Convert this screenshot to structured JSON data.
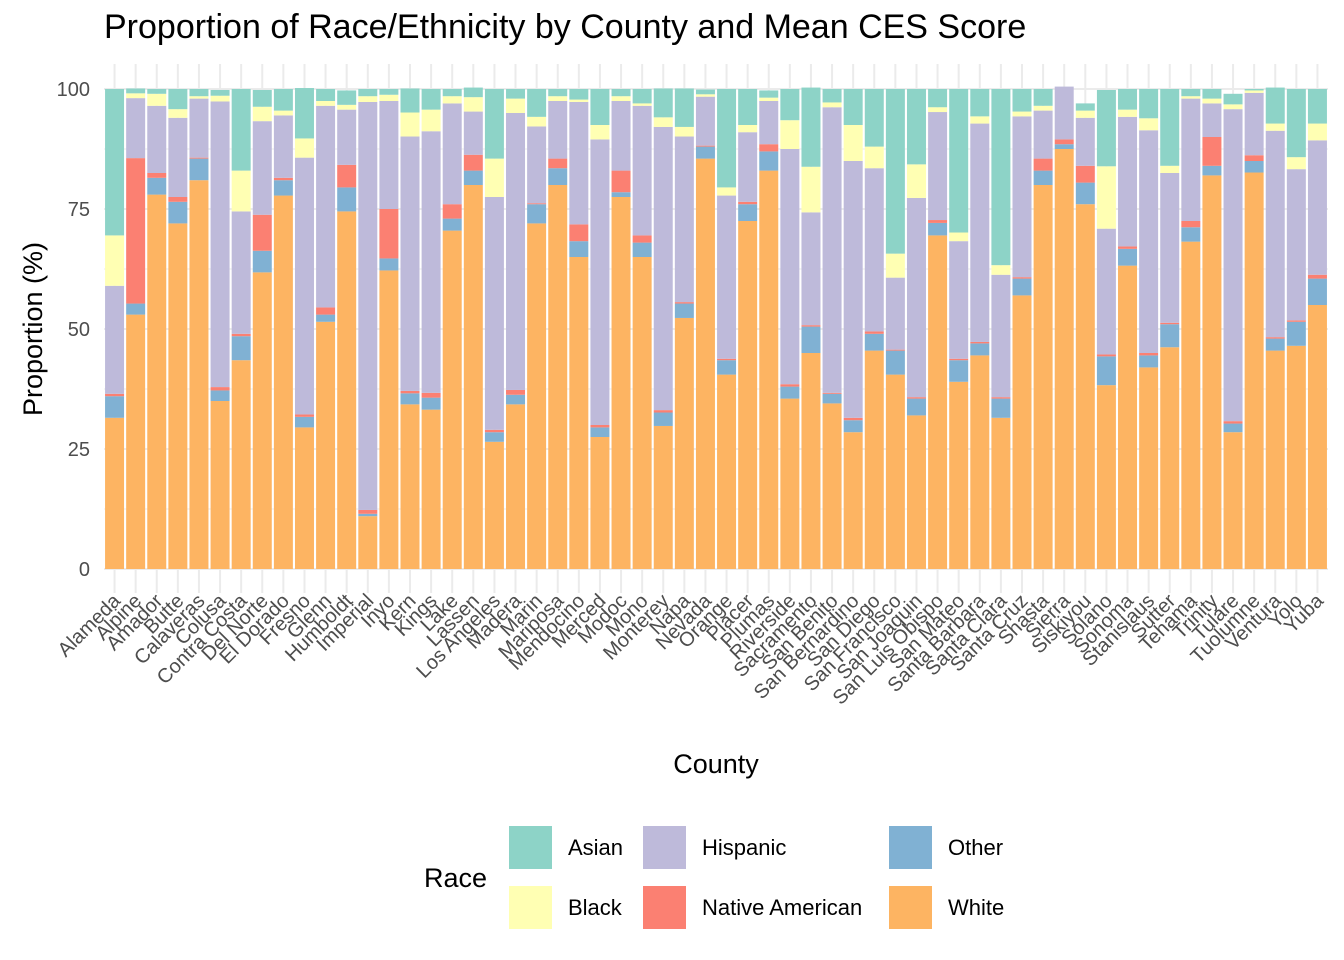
{
  "chart_data": {
    "type": "bar",
    "stacked": true,
    "title": "Proportion of Race/Ethnicity by County and Mean CES Score",
    "xlabel": "County",
    "ylabel": "Proportion (%)",
    "ylim": [
      0,
      100
    ],
    "yticks": [
      "0",
      "25",
      "50",
      "75",
      "100"
    ],
    "grid": true,
    "legend_position": "bottom",
    "legend_title": "Race",
    "colors": {
      "White": "#fdb462",
      "Other": "#80b1d3",
      "Native American": "#fb8072",
      "Hispanic": "#bebada",
      "Black": "#ffffb3",
      "Asian": "#8dd3c7"
    },
    "legend": [
      "Asian",
      "Black",
      "Hispanic",
      "Native American",
      "Other",
      "White"
    ],
    "categories": [
      "Alameda",
      "Alpine",
      "Amador",
      "Butte",
      "Calaveras",
      "Colusa",
      "Contra Costa",
      "Del Norte",
      "El Dorado",
      "Fresno",
      "Glenn",
      "Humboldt",
      "Imperial",
      "Inyo",
      "Kern",
      "Kings",
      "Lake",
      "Lassen",
      "Los Angeles",
      "Madera",
      "Marin",
      "Mariposa",
      "Mendocino",
      "Merced",
      "Modoc",
      "Mono",
      "Monterey",
      "Napa",
      "Nevada",
      "Orange",
      "Placer",
      "Plumas",
      "Riverside",
      "Sacramento",
      "San Benito",
      "San Bernardino",
      "San Diego",
      "San Francisco",
      "San Joaquin",
      "San Luis Obispo",
      "San Mateo",
      "Santa Barbara",
      "Santa Clara",
      "Santa Cruz",
      "Shasta",
      "Sierra",
      "Siskiyou",
      "Solano",
      "Sonoma",
      "Stanislaus",
      "Sutter",
      "Tehama",
      "Trinity",
      "Tulare",
      "Tuolumne",
      "Ventura",
      "Yolo",
      "Yuba"
    ],
    "series": [
      {
        "name": "White",
        "values": [
          31.5,
          53,
          78,
          72,
          81,
          35,
          43.5,
          61.8,
          77.8,
          29.5,
          51.5,
          74.5,
          11,
          62.2,
          34.3,
          33.2,
          70.5,
          80,
          26.5,
          34.3,
          72,
          80,
          65,
          27.5,
          77.5,
          65,
          29.8,
          52.3,
          85.5,
          40.5,
          72.5,
          83,
          35.5,
          45,
          34.5,
          28.5,
          45.5,
          40.5,
          32,
          69.5,
          39,
          44.5,
          31.5,
          57,
          80,
          87.5,
          76,
          38.3,
          63.2,
          42,
          46.2,
          68.2,
          82,
          28.5,
          82.6,
          45.5,
          46.5,
          55
        ]
      },
      {
        "name": "Other",
        "values": [
          4.5,
          2.3,
          3.5,
          4.5,
          4.5,
          2.2,
          5,
          4.5,
          3.2,
          2.2,
          1.5,
          5,
          0.5,
          2.5,
          2.3,
          2.5,
          2.5,
          3,
          2,
          2,
          4,
          3.5,
          3.3,
          2,
          1,
          3,
          2.8,
          3,
          2.5,
          3,
          3.5,
          4,
          2.5,
          5.5,
          2,
          2.5,
          3.5,
          5,
          3.5,
          2.6,
          4.5,
          2.5,
          4,
          3.5,
          3,
          1,
          4.5,
          6,
          3.5,
          2.5,
          4.8,
          3,
          2,
          1.8,
          2.4,
          2.5,
          5,
          5.5
        ]
      },
      {
        "name": "Native American",
        "values": [
          0.5,
          30.3,
          1,
          1,
          0.2,
          0.7,
          0.5,
          7.5,
          0.5,
          0.5,
          1.5,
          4.7,
          0.8,
          10.3,
          0.5,
          1,
          3,
          3.3,
          0.5,
          1,
          0.2,
          2,
          3.5,
          0.5,
          4.5,
          1.5,
          0.5,
          0.3,
          0.2,
          0.3,
          0.5,
          1.5,
          0.5,
          0.3,
          0.2,
          0.5,
          0.5,
          0.2,
          0.3,
          0.6,
          0.3,
          0.3,
          0.3,
          0.3,
          2.5,
          1,
          3.5,
          0.4,
          0.5,
          0.5,
          0.3,
          1.3,
          6,
          0.5,
          1.2,
          0.3,
          0.3,
          0.8
        ]
      },
      {
        "name": "Hispanic",
        "values": [
          22.5,
          12.5,
          14,
          16.5,
          12.3,
          59.5,
          25.5,
          19.5,
          13,
          53.5,
          42,
          11.5,
          85,
          22.5,
          53,
          54.5,
          21,
          9,
          48.5,
          57.7,
          16,
          12,
          25.5,
          59.5,
          14.5,
          27,
          59,
          34.5,
          10.2,
          34,
          14.5,
          9,
          49,
          23.5,
          59.5,
          53.5,
          34,
          15,
          41.5,
          22.5,
          24.5,
          45.5,
          25.5,
          33.5,
          10,
          11,
          10,
          26.2,
          27,
          46.4,
          31.2,
          25.5,
          7,
          65,
          13,
          43,
          31.5,
          28
        ]
      },
      {
        "name": "Black",
        "values": [
          10.5,
          1,
          2.5,
          1.8,
          0.5,
          1.2,
          8.5,
          3,
          1,
          4,
          1,
          1,
          1.2,
          1.3,
          5,
          4.5,
          1.5,
          3,
          8,
          3,
          2,
          1,
          0.5,
          3,
          1,
          0.5,
          2,
          2,
          0.5,
          1.7,
          1.5,
          0.7,
          6,
          9.5,
          1,
          7.5,
          4.5,
          5,
          7,
          1,
          1.8,
          1.5,
          2,
          1,
          1,
          0,
          1.5,
          13,
          1.5,
          2.5,
          1.5,
          0.5,
          1,
          1,
          0.5,
          1.5,
          2.5,
          3.5
        ]
      },
      {
        "name": "Asian",
        "values": [
          30.5,
          1,
          1,
          4.2,
          1.5,
          1.2,
          17,
          3.5,
          4.5,
          10.5,
          2.5,
          3,
          1.5,
          1.2,
          5,
          4.3,
          1.5,
          2,
          14.5,
          2,
          5.8,
          1.5,
          2.2,
          7.5,
          1.5,
          3,
          6,
          8,
          1,
          20.5,
          7.5,
          1.5,
          6.5,
          16.5,
          2.8,
          7.5,
          12,
          34.3,
          15.7,
          3.8,
          29.9,
          5.7,
          36.7,
          4.7,
          3.5,
          0,
          1.5,
          15.9,
          4.3,
          6.1,
          16,
          1.5,
          2,
          2.2,
          0.3,
          7.5,
          14.2,
          7.2
        ]
      }
    ]
  }
}
